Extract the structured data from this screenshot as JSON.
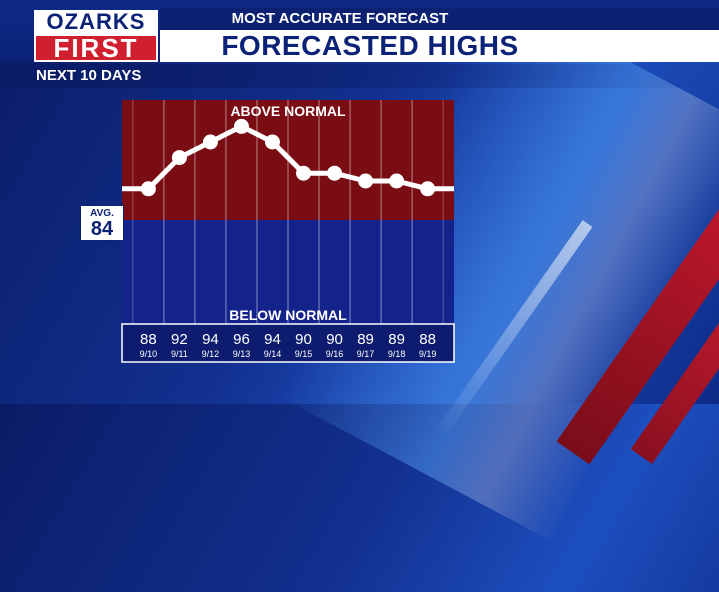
{
  "header": {
    "kicker": "MOST ACCURATE FORECAST",
    "title": "FORECASTED HIGHS",
    "subtitle": "NEXT 10 DAYS"
  },
  "logo": {
    "line1": "OZARKS",
    "line2": "FIRST"
  },
  "avg": {
    "label": "AVG.",
    "value": "84"
  },
  "labels": {
    "above": "ABOVE NORMAL",
    "below": "BELOW NORMAL"
  },
  "colors": {
    "above": "#7a0d14",
    "below": "#14238c",
    "line": "#ffffff",
    "accent": "#d01f2e"
  },
  "chart_data": {
    "type": "line",
    "categories": [
      "9/10",
      "9/11",
      "9/12",
      "9/13",
      "9/14",
      "9/15",
      "9/16",
      "9/17",
      "9/18",
      "9/19"
    ],
    "values": [
      88,
      92,
      94,
      96,
      94,
      90,
      90,
      89,
      89,
      88
    ],
    "value_labels": [
      "88",
      "92",
      "94",
      "96",
      "94",
      "90",
      "90",
      "89",
      "89",
      "88"
    ],
    "average": 84
  }
}
